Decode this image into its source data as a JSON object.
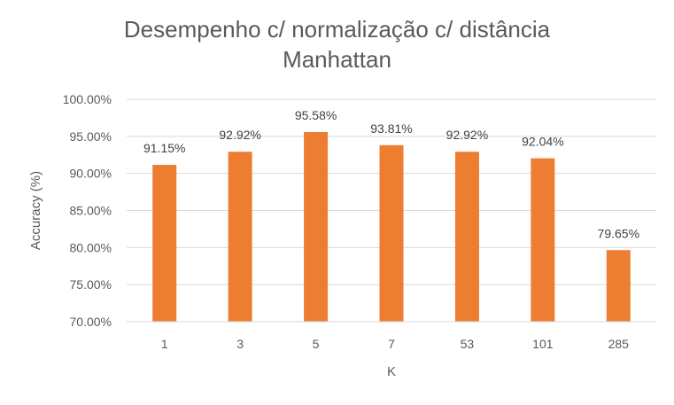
{
  "chart_data": {
    "type": "bar",
    "title_lines": [
      "Desempenho c/ normalização c/ distância",
      "Manhattan"
    ],
    "xlabel": "K",
    "ylabel": "Accuracy (%)",
    "categories": [
      "1",
      "3",
      "5",
      "7",
      "53",
      "101",
      "285"
    ],
    "values": [
      91.15,
      92.92,
      95.58,
      93.81,
      92.92,
      92.04,
      79.65
    ],
    "data_labels": [
      "91.15%",
      "92.92%",
      "95.58%",
      "93.81%",
      "92.92%",
      "92.04%",
      "79.65%"
    ],
    "ylim": [
      70,
      100
    ],
    "y_ticks": [
      70,
      75,
      80,
      85,
      90,
      95,
      100
    ],
    "y_tick_labels": [
      "70.00%",
      "75.00%",
      "80.00%",
      "85.00%",
      "90.00%",
      "95.00%",
      "100.00%"
    ],
    "grid": true,
    "legend": "none",
    "colors": {
      "bar": "#ED7D31",
      "grid": "#D9D9D9",
      "text": "#595959"
    }
  }
}
